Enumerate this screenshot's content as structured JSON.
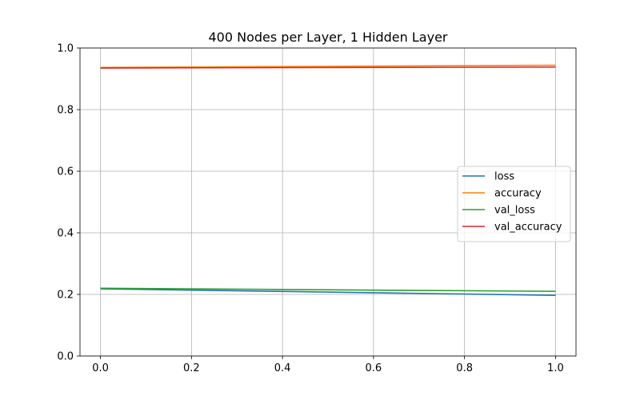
{
  "chart_data": {
    "type": "line",
    "title": "400 Nodes per Layer, 1 Hidden Layer",
    "xlabel": "",
    "ylabel": "",
    "xlim": [
      -0.045,
      1.045
    ],
    "ylim": [
      0,
      1
    ],
    "x_ticks": [
      0.0,
      0.2,
      0.4,
      0.6,
      0.8,
      1.0
    ],
    "x_tick_labels": [
      "0.0",
      "0.2",
      "0.4",
      "0.6",
      "0.8",
      "1.0"
    ],
    "y_ticks": [
      0.0,
      0.2,
      0.4,
      0.6,
      0.8,
      1.0
    ],
    "y_tick_labels": [
      "0.0",
      "0.2",
      "0.4",
      "0.6",
      "0.8",
      "1.0"
    ],
    "grid": true,
    "legend_position": "center-right",
    "x": [
      0,
      1
    ],
    "series": [
      {
        "name": "loss",
        "color": "#1f77b4",
        "values": [
          0.218,
          0.197
        ]
      },
      {
        "name": "accuracy",
        "color": "#ff7f0e",
        "values": [
          0.937,
          0.944
        ]
      },
      {
        "name": "val_loss",
        "color": "#2ca02c",
        "values": [
          0.22,
          0.21
        ]
      },
      {
        "name": "val_accuracy",
        "color": "#d62728",
        "values": [
          0.935,
          0.938
        ]
      }
    ]
  }
}
